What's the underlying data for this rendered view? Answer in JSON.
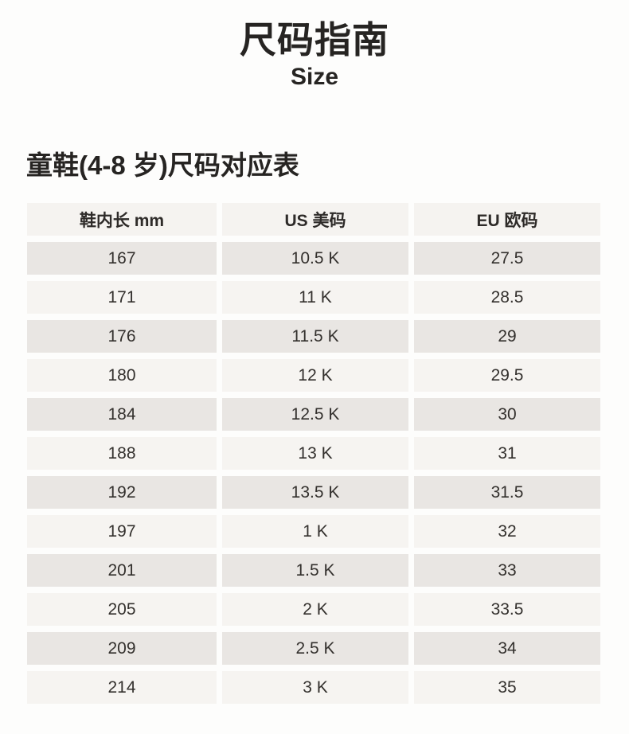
{
  "page": {
    "title": "尺码指南",
    "subtitle": "Size",
    "section_title": "童鞋(4-8 岁)尺码对应表"
  },
  "table": {
    "columns": [
      "鞋内长 mm",
      "US 美码",
      "EU 欧码"
    ],
    "rows": [
      [
        "167",
        "10.5 K",
        "27.5"
      ],
      [
        "171",
        "11 K",
        "28.5"
      ],
      [
        "176",
        "11.5 K",
        "29"
      ],
      [
        "180",
        "12 K",
        "29.5"
      ],
      [
        "184",
        "12.5 K",
        "30"
      ],
      [
        "188",
        "13 K",
        "31"
      ],
      [
        "192",
        "13.5 K",
        "31.5"
      ],
      [
        "197",
        "1 K",
        "32"
      ],
      [
        "201",
        "1.5 K",
        "33"
      ],
      [
        "205",
        "2 K",
        "33.5"
      ],
      [
        "209",
        "2.5 K",
        "34"
      ],
      [
        "214",
        "3 K",
        "35"
      ]
    ]
  },
  "colors": {
    "page_background": "#fdfdfc",
    "header_row_background": "#f5f3f0",
    "row_dark_background": "#e9e6e3",
    "row_light_background": "#f6f4f1",
    "text": "#2b2927"
  }
}
